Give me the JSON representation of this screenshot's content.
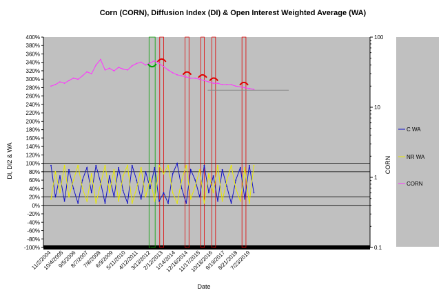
{
  "chart_data": {
    "type": "line",
    "title": "Corn (CORN), Diffusion Index (DI) & Open Interest Weighted Average (WA)",
    "xlabel": "Date",
    "ylabel_left": "DI, DI2 & WA",
    "ylabel_right": "CORN",
    "x_tick_labels": [
      "11/2/2004",
      "10/4/2005",
      "9/5/2006",
      "8/7/2007",
      "7/8/2008",
      "6/9/2009",
      "5/11/2010",
      "4/12/2011",
      "3/13/2012",
      "2/12/2013",
      "1/14/2014",
      "12/16/2014",
      "11/17/2015",
      "10/18/2016",
      "9/19/2017",
      "8/21/2018",
      "7/23/2019"
    ],
    "left_axis": {
      "ylim": [
        -100,
        400
      ],
      "tick_labels": [
        "-100%",
        "-80%",
        "-60%",
        "-40%",
        "-20%",
        "0%",
        "20%",
        "40%",
        "60%",
        "80%",
        "100%",
        "120%",
        "140%",
        "160%",
        "180%",
        "200%",
        "220%",
        "240%",
        "260%",
        "280%",
        "300%",
        "320%",
        "340%",
        "360%",
        "380%",
        "400%"
      ]
    },
    "right_axis": {
      "scale": "log",
      "ylim": [
        0.1,
        100
      ],
      "tick_labels": [
        "0.1",
        "1",
        "10",
        "100"
      ]
    },
    "reference_lines_left_pct": [
      0,
      20,
      80,
      100
    ],
    "grid": false,
    "legend_position": "right",
    "series": [
      {
        "name": "C WA",
        "axis": "left",
        "color": "#1010c8",
        "x": [
          "11/2/2004",
          "3/1/2005",
          "7/1/2005",
          "11/1/2005",
          "3/1/2006",
          "7/1/2006",
          "11/1/2006",
          "3/1/2007",
          "7/1/2007",
          "11/1/2007",
          "3/1/2008",
          "7/1/2008",
          "11/1/2008",
          "3/1/2009",
          "7/1/2009",
          "11/1/2009",
          "3/1/2010",
          "7/1/2010",
          "11/1/2010",
          "3/1/2011",
          "7/1/2011",
          "11/1/2011",
          "3/1/2012",
          "7/1/2012",
          "11/1/2012",
          "3/1/2013",
          "7/1/2013",
          "11/1/2013",
          "3/1/2014",
          "7/1/2014",
          "11/1/2014",
          "3/1/2015",
          "7/1/2015",
          "11/1/2015",
          "3/1/2016",
          "7/1/2016",
          "11/1/2016",
          "3/1/2017",
          "7/1/2017",
          "11/1/2017",
          "3/1/2018",
          "7/1/2018",
          "11/1/2018",
          "3/1/2019",
          "7/1/2019",
          "11/1/2019"
        ],
        "y": [
          95,
          20,
          70,
          10,
          85,
          40,
          5,
          60,
          90,
          30,
          95,
          55,
          5,
          70,
          20,
          90,
          35,
          5,
          95,
          60,
          15,
          80,
          40,
          90,
          10,
          30,
          5,
          75,
          100,
          40,
          5,
          85,
          60,
          20,
          95,
          30,
          70,
          10,
          85,
          45,
          5,
          60,
          90,
          15,
          95,
          30
        ]
      },
      {
        "name": "NR WA",
        "axis": "left",
        "color": "#e8e800",
        "x": [
          "11/2/2004",
          "3/1/2005",
          "7/1/2005",
          "11/1/2005",
          "3/1/2006",
          "7/1/2006",
          "11/1/2006",
          "3/1/2007",
          "7/1/2007",
          "11/1/2007",
          "3/1/2008",
          "7/1/2008",
          "11/1/2008",
          "3/1/2009",
          "7/1/2009",
          "11/1/2009",
          "3/1/2010",
          "7/1/2010",
          "11/1/2010",
          "3/1/2011",
          "7/1/2011",
          "11/1/2011",
          "3/1/2012",
          "7/1/2012",
          "11/1/2012",
          "3/1/2013",
          "7/1/2013",
          "11/1/2013",
          "3/1/2014",
          "7/1/2014",
          "11/1/2014",
          "3/1/2015",
          "7/1/2015",
          "11/1/2015",
          "3/1/2016",
          "7/1/2016",
          "11/1/2016",
          "3/1/2017",
          "7/1/2017",
          "11/1/2017",
          "3/1/2018",
          "7/1/2018",
          "11/1/2018",
          "3/1/2019",
          "7/1/2019",
          "11/1/2019"
        ],
        "y": [
          15,
          80,
          30,
          95,
          20,
          60,
          95,
          40,
          10,
          75,
          5,
          50,
          95,
          30,
          85,
          10,
          70,
          95,
          5,
          40,
          90,
          20,
          65,
          10,
          95,
          75,
          95,
          30,
          5,
          60,
          95,
          15,
          45,
          85,
          5,
          75,
          30,
          95,
          10,
          60,
          95,
          40,
          10,
          90,
          5,
          95
        ]
      },
      {
        "name": "CORN",
        "axis": "right",
        "color": "#ff33ff",
        "x": [
          "11/2/2004",
          "3/1/2005",
          "7/1/2005",
          "11/1/2005",
          "3/1/2006",
          "7/1/2006",
          "11/1/2006",
          "3/1/2007",
          "7/1/2007",
          "11/1/2007",
          "3/1/2008",
          "7/1/2008",
          "11/1/2008",
          "3/1/2009",
          "7/1/2009",
          "11/1/2009",
          "3/1/2010",
          "7/1/2010",
          "11/1/2010",
          "3/1/2011",
          "7/1/2011",
          "11/1/2011",
          "3/1/2012",
          "7/1/2012",
          "11/1/2012",
          "3/1/2013",
          "7/1/2013",
          "11/1/2013",
          "3/1/2014",
          "7/1/2014",
          "11/1/2014",
          "3/1/2015",
          "7/1/2015",
          "11/1/2015",
          "3/1/2016",
          "7/1/2016",
          "11/1/2016",
          "3/1/2017",
          "7/1/2017",
          "11/1/2017",
          "3/1/2018",
          "7/1/2018",
          "11/1/2018",
          "3/1/2019",
          "7/1/2019",
          "11/1/2019"
        ],
        "y": [
          20,
          21,
          23,
          22,
          24,
          26,
          25,
          28,
          32,
          30,
          40,
          48,
          34,
          36,
          33,
          37,
          35,
          34,
          39,
          42,
          44,
          40,
          43,
          46,
          42,
          38,
          34,
          31,
          29,
          28,
          27,
          26,
          26,
          25,
          24,
          23,
          22,
          22,
          21,
          21,
          21,
          20,
          19.5,
          19,
          18.5,
          18
        ]
      }
    ],
    "signal_markers": [
      {
        "x": "2/1/2012",
        "color": "#00a000"
      },
      {
        "x": "7/15/2012",
        "color": "#00a000"
      },
      {
        "x": "11/15/2012",
        "color": "#e00000"
      },
      {
        "x": "3/1/2013",
        "color": "#e00000"
      },
      {
        "x": "10/1/2014",
        "color": "#e00000"
      },
      {
        "x": "1/15/2015",
        "color": "#e00000"
      },
      {
        "x": "12/1/2015",
        "color": "#e00000"
      },
      {
        "x": "3/1/2016",
        "color": "#e00000"
      },
      {
        "x": "9/25/2016",
        "color": "#e00000"
      },
      {
        "x": "1/1/2017",
        "color": "#e00000"
      },
      {
        "x": "12/15/2018",
        "color": "#e00000"
      },
      {
        "x": "4/1/2019",
        "color": "#e00000"
      }
    ],
    "reference_level": {
      "value": 17.5,
      "x_start": "6/1/2016",
      "x_end": "6/1/2022",
      "color": "#888888"
    },
    "colors": {
      "plot_background": "#c0c0c0",
      "right_band": "#c0c0c0"
    }
  }
}
